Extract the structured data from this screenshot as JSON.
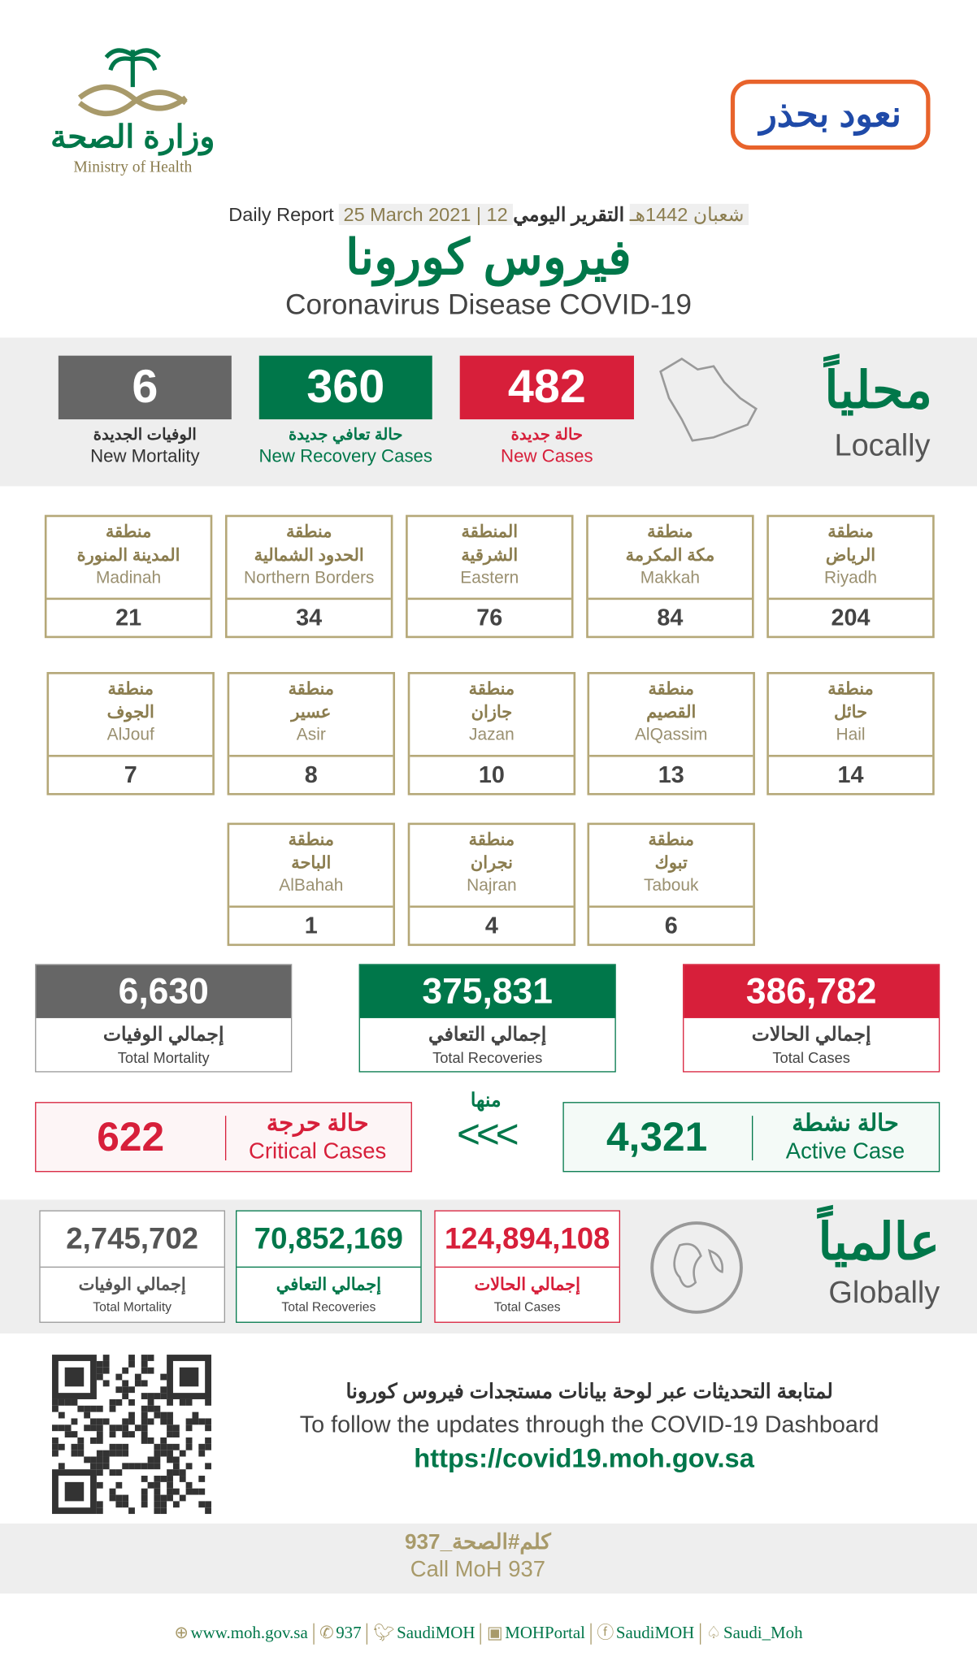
{
  "header": {
    "moh_ar": "وزارة الصحة",
    "moh_en": "Ministry of Health",
    "campaign": "نعود بحذر",
    "daily_ar": "التقرير اليومي",
    "daily_en": "Daily Report",
    "date_hijri": "12 شعبان 1442هـ",
    "date": "25 March 2021",
    "title_ar": "فيروس كورونا",
    "title_en": "Coronavirus Disease COVID-19"
  },
  "locally": {
    "title_ar": "محلياً",
    "title_en": "Locally",
    "new_cases": {
      "value": "482",
      "ar": "حالة جديدة",
      "en": "New Cases"
    },
    "new_recovery": {
      "value": "360",
      "ar": "حالة تعافي جديدة",
      "en": "New Recovery Cases"
    },
    "new_mortality": {
      "value": "6",
      "ar": "الوفيات الجديدة",
      "en": "New Mortality"
    }
  },
  "regions": [
    {
      "a1": "منطقة",
      "a2": "الرياض",
      "en": "Riyadh",
      "value": "204"
    },
    {
      "a1": "منطقة",
      "a2": "مكة المكرمة",
      "en": "Makkah",
      "value": "84"
    },
    {
      "a1": "المنطقة",
      "a2": "الشرقية",
      "en": "Eastern",
      "value": "76"
    },
    {
      "a1": "منطقة",
      "a2": "الحدود الشمالية",
      "en": "Northern Borders",
      "value": "34"
    },
    {
      "a1": "منطقة",
      "a2": "المدينة المنورة",
      "en": "Madinah",
      "value": "21"
    },
    {
      "a1": "منطقة",
      "a2": "حائل",
      "en": "Hail",
      "value": "14"
    },
    {
      "a1": "منطقة",
      "a2": "القصيم",
      "en": "AlQassim",
      "value": "13"
    },
    {
      "a1": "منطقة",
      "a2": "جازان",
      "en": "Jazan",
      "value": "10"
    },
    {
      "a1": "منطقة",
      "a2": "عسير",
      "en": "Asir",
      "value": "8"
    },
    {
      "a1": "منطقة",
      "a2": "الجوف",
      "en": "AlJouf",
      "value": "7"
    },
    {
      "a1": "منطقة",
      "a2": "تبوك",
      "en": "Tabouk",
      "value": "6"
    },
    {
      "a1": "منطقة",
      "a2": "نجران",
      "en": "Najran",
      "value": "4"
    },
    {
      "a1": "منطقة",
      "a2": "الباحة",
      "en": "AlBahah",
      "value": "1"
    }
  ],
  "totals": {
    "cases": {
      "value": "386,782",
      "ar": "إجمالي الحالات",
      "en": "Total Cases"
    },
    "recoveries": {
      "value": "375,831",
      "ar": "إجمالي التعافي",
      "en": "Total Recoveries"
    },
    "mortality": {
      "value": "6,630",
      "ar": "إجمالي الوفيات",
      "en": "Total Mortality"
    }
  },
  "active": {
    "value": "4,321",
    "ar": "حالة نشطة",
    "en": "Active Case"
  },
  "of_which": "منها",
  "arrows": "<<<",
  "critical": {
    "value": "622",
    "ar": "حالة حرجة",
    "en": "Critical Cases"
  },
  "globally": {
    "title_ar": "عالمياً",
    "title_en": "Globally",
    "cases": {
      "value": "124,894,108",
      "ar": "إجمالي الحالات",
      "en": "Total Cases"
    },
    "recoveries": {
      "value": "70,852,169",
      "ar": "إجمالي التعافي",
      "en": "Total Recoveries"
    },
    "mortality": {
      "value": "2,745,702",
      "ar": "إجمالي الوفيات",
      "en": "Total Mortality"
    }
  },
  "dashboard": {
    "ar": "لمتابعة التحديثات عبر لوحة بيانات مستجدات فيروس كورونا",
    "en": "To follow the updates through the COVID-19 Dashboard",
    "url": "https://covid19.moh.gov.sa"
  },
  "call": {
    "ar": "كلم#الصحة_937",
    "en": "Call MoH 937"
  },
  "footer": [
    {
      "icon": "globe-icon",
      "text": "www.moh.gov.sa"
    },
    {
      "icon": "phone-icon",
      "text": "937"
    },
    {
      "icon": "twitter-icon",
      "text": "SaudiMOH"
    },
    {
      "icon": "youtube-icon",
      "text": "MOHPortal"
    },
    {
      "icon": "facebook-icon",
      "text": "SaudiMOH"
    },
    {
      "icon": "snapchat-icon",
      "text": "Saudi_Moh"
    }
  ],
  "colors": {
    "red": "#d71f3a",
    "green": "#00774a",
    "gray": "#666666",
    "gold": "#a89a6a"
  }
}
